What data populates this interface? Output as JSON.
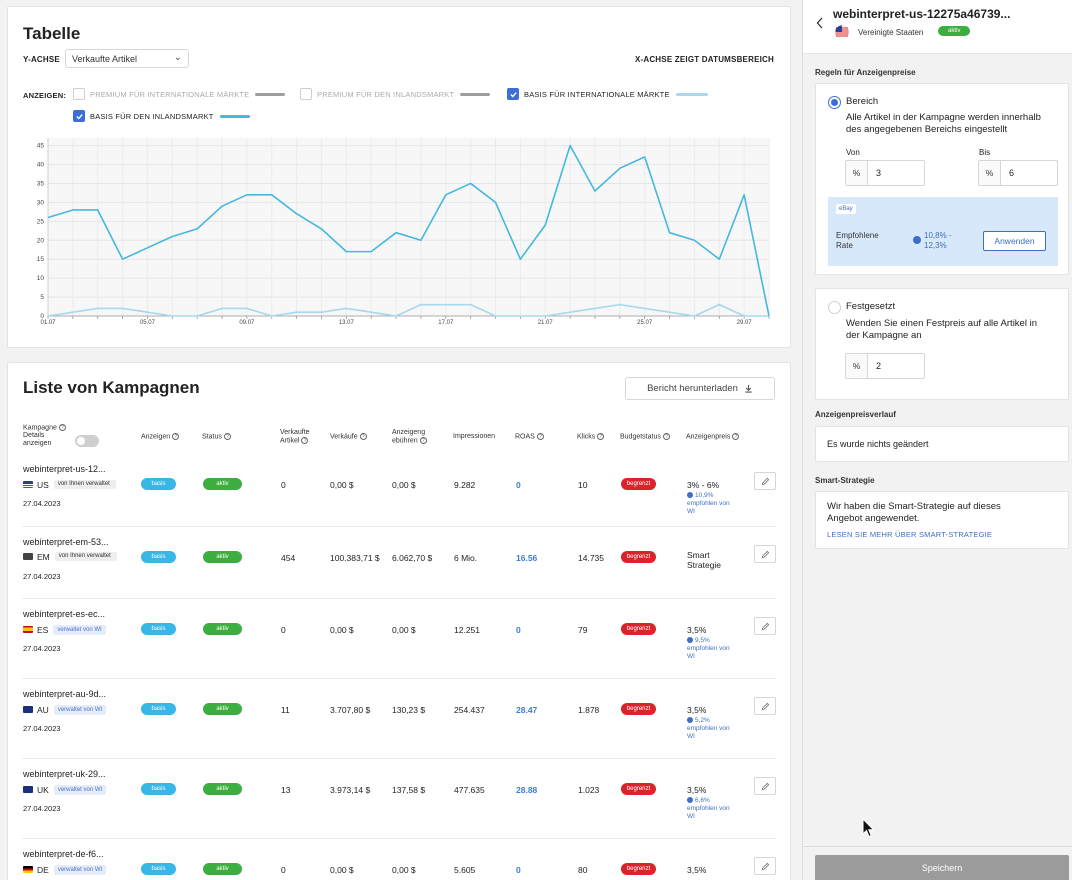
{
  "chart_section": {
    "title": "Tabelle",
    "y_axis_label": "Y-ACHSE",
    "y_axis_select": "Verkaufte Artikel",
    "x_axis_note": "X-ACHSE ZEIGT DATUMSBEREICH",
    "show_label": "ANZEIGEN:",
    "legend": [
      {
        "label": "PREMIUM FÜR INTERNATIONALE MÄRKTE",
        "checked": false,
        "color": "#9e9e9e"
      },
      {
        "label": "PREMIUM FÜR DEN INLANDSMARKT",
        "checked": false,
        "color": "#9e9e9e"
      },
      {
        "label": "BASIS FÜR INTERNATIONALE MÄRKTE",
        "checked": true,
        "color": "#a7d8ec"
      },
      {
        "label": "BASIS FÜR DEN INLANDSMARKT",
        "checked": true,
        "color": "#45b8dc"
      }
    ]
  },
  "chart_data": {
    "type": "line",
    "x": [
      "01.07",
      "02.07",
      "03.07",
      "04.07",
      "05.07",
      "06.07",
      "07.07",
      "08.07",
      "09.07",
      "10.07",
      "11.07",
      "12.07",
      "13.07",
      "14.07",
      "15.07",
      "16.07",
      "17.07",
      "18.07",
      "19.07",
      "20.07",
      "21.07",
      "22.07",
      "23.07",
      "24.07",
      "25.07",
      "26.07",
      "27.07",
      "28.07",
      "29.07",
      "30.07"
    ],
    "x_tick_labels": [
      "01.07",
      "05.07",
      "09.07",
      "13.07",
      "17.07",
      "21.07",
      "25.07",
      "29.07"
    ],
    "y_ticks": [
      0,
      5,
      10,
      15,
      20,
      25,
      30,
      35,
      40,
      45
    ],
    "ylim": [
      0,
      47
    ],
    "series": [
      {
        "name": "BASIS FÜR DEN INLANDSMARKT",
        "color": "#45b8dc",
        "values": [
          26,
          28,
          28,
          15,
          18,
          21,
          23,
          29,
          32,
          32,
          27,
          23,
          17,
          17,
          22,
          20,
          32,
          35,
          30,
          15,
          24,
          45,
          33,
          39,
          42,
          22,
          20,
          15,
          32,
          0
        ]
      },
      {
        "name": "BASIS FÜR INTERNATIONALE MÄRKTE",
        "color": "#a7d8ec",
        "values": [
          0,
          1,
          2,
          2,
          1,
          0,
          0,
          2,
          2,
          0,
          1,
          1,
          2,
          1,
          0,
          3,
          3,
          3,
          0,
          0,
          0,
          1,
          2,
          3,
          2,
          1,
          0,
          3,
          0,
          0
        ]
      }
    ]
  },
  "list_section": {
    "title": "Liste von Kampagnen",
    "download_button": "Bericht herunterladen",
    "columns": {
      "kampagne": "Kampagne",
      "details": "Details",
      "anzeigen_toggle": "anzeigen",
      "anzeigen": "Anzeigen",
      "status": "Status",
      "verkaufte1": "Verkaufte",
      "verkaufte2": "Artikel",
      "verkaeufe": "Verkäufe",
      "gebuehren1": "Anzeigeng",
      "gebuehren2": "ebühren",
      "impressionen": "Impressionen",
      "roas": "ROAS",
      "klicks": "Klicks",
      "budgetstatus": "Budgetstatus",
      "anzeigenpreis": "Anzeigenpreis"
    },
    "rows": [
      {
        "name": "webinterpret-us-12...",
        "cc": "US",
        "tag": "von Ihnen verwaltet",
        "tag_type": "grey",
        "date": "27.04.2023",
        "ads": "basis",
        "status": "aktiv",
        "sold": "0",
        "sales": "0,00 $",
        "fees": "0,00 $",
        "impressions": "9.282",
        "roas": "0",
        "clicks": "10",
        "budget": "begrenzt",
        "price": "3% - 6%",
        "rec_value": "10,9%",
        "rec_text": "empfohlen von WI",
        "flag": "us"
      },
      {
        "name": "webinterpret-em-53...",
        "cc": "EM",
        "tag": "von Ihnen verwaltet",
        "tag_type": "grey",
        "date": "27.04.2023",
        "ads": "basis",
        "status": "aktiv",
        "sold": "454",
        "sales": "100.383,71 $",
        "fees": "6.062,70 $",
        "impressions": "6 Mio.",
        "roas": "16.56",
        "clicks": "14.735",
        "budget": "begrenzt",
        "price": "Smart Strategie",
        "rec_value": "",
        "rec_text": "",
        "flag": "em"
      },
      {
        "name": "webinterpret-es-ec...",
        "cc": "ES",
        "tag": "verwaltet von WI",
        "tag_type": "blue",
        "date": "27.04.2023",
        "ads": "basis",
        "status": "aktiv",
        "sold": "0",
        "sales": "0,00 $",
        "fees": "0,00 $",
        "impressions": "12.251",
        "roas": "0",
        "clicks": "79",
        "budget": "begrenzt",
        "price": "3,5%",
        "rec_value": "9,5%",
        "rec_text": "empfohlen von WI",
        "flag": "es"
      },
      {
        "name": "webinterpret-au-9d...",
        "cc": "AU",
        "tag": "verwaltet von WI",
        "tag_type": "blue",
        "date": "27.04.2023",
        "ads": "basis",
        "status": "aktiv",
        "sold": "11",
        "sales": "3.707,80 $",
        "fees": "130,23 $",
        "impressions": "254.437",
        "roas": "28.47",
        "clicks": "1.878",
        "budget": "begrenzt",
        "price": "3,5%",
        "rec_value": "5,2%",
        "rec_text": "empfohlen von WI",
        "flag": "au"
      },
      {
        "name": "webinterpret-uk-29...",
        "cc": "UK",
        "tag": "verwaltet von WI",
        "tag_type": "blue",
        "date": "27.04.2023",
        "ads": "basis",
        "status": "aktiv",
        "sold": "13",
        "sales": "3.973,14 $",
        "fees": "137,58 $",
        "impressions": "477.635",
        "roas": "28.88",
        "clicks": "1.023",
        "budget": "begrenzt",
        "price": "3,5%",
        "rec_value": "6,6%",
        "rec_text": "empfohlen von WI",
        "flag": "uk"
      },
      {
        "name": "webinterpret-de-f6...",
        "cc": "DE",
        "tag": "verwaltet von WI",
        "tag_type": "blue",
        "date": "",
        "ads": "basis",
        "status": "aktiv",
        "sold": "0",
        "sales": "0,00 $",
        "fees": "0,00 $",
        "impressions": "5.605",
        "roas": "0",
        "clicks": "80",
        "budget": "begrenzt",
        "price": "3,5%",
        "rec_value": "",
        "rec_text": "",
        "flag": "de"
      }
    ]
  },
  "panel": {
    "title": "webinterpret-us-12275a46739...",
    "country": "Vereinigte Staaten",
    "status": "aktiv",
    "rules_title": "Regeln für Anzeigenpreise",
    "range_label": "Bereich",
    "range_desc_1": "Alle Artikel in der Kampagne werden innerhalb",
    "range_desc_2": "des angegebenen Bereichs eingestellt",
    "from_label": "Von",
    "to_label": "Bis",
    "from_value": "3",
    "to_value": "6",
    "percent": "%",
    "ebay_label": "eBay",
    "rec_rate_1": "Empfohlene",
    "rec_rate_2": "Rate",
    "rec_range_1": "10,8% -",
    "rec_range_2": "12,3%",
    "apply_button": "Anwenden",
    "fixed_label": "Festgesetzt",
    "fixed_desc_1": "Wenden Sie einen Festpreis auf alle Artikel in",
    "fixed_desc_2": "der Kampagne an",
    "fixed_value": "2",
    "history_title": "Anzeigenpreisverlauf",
    "history_text": "Es wurde nichts geändert",
    "smart_title": "Smart-Strategie",
    "smart_text_1": "Wir haben die Smart-Strategie auf dieses",
    "smart_text_2": "Angebot angewendet.",
    "smart_link": "LESEN SIE MEHR ÜBER SMART-STRATEGIE",
    "save_button": "Speichern"
  }
}
